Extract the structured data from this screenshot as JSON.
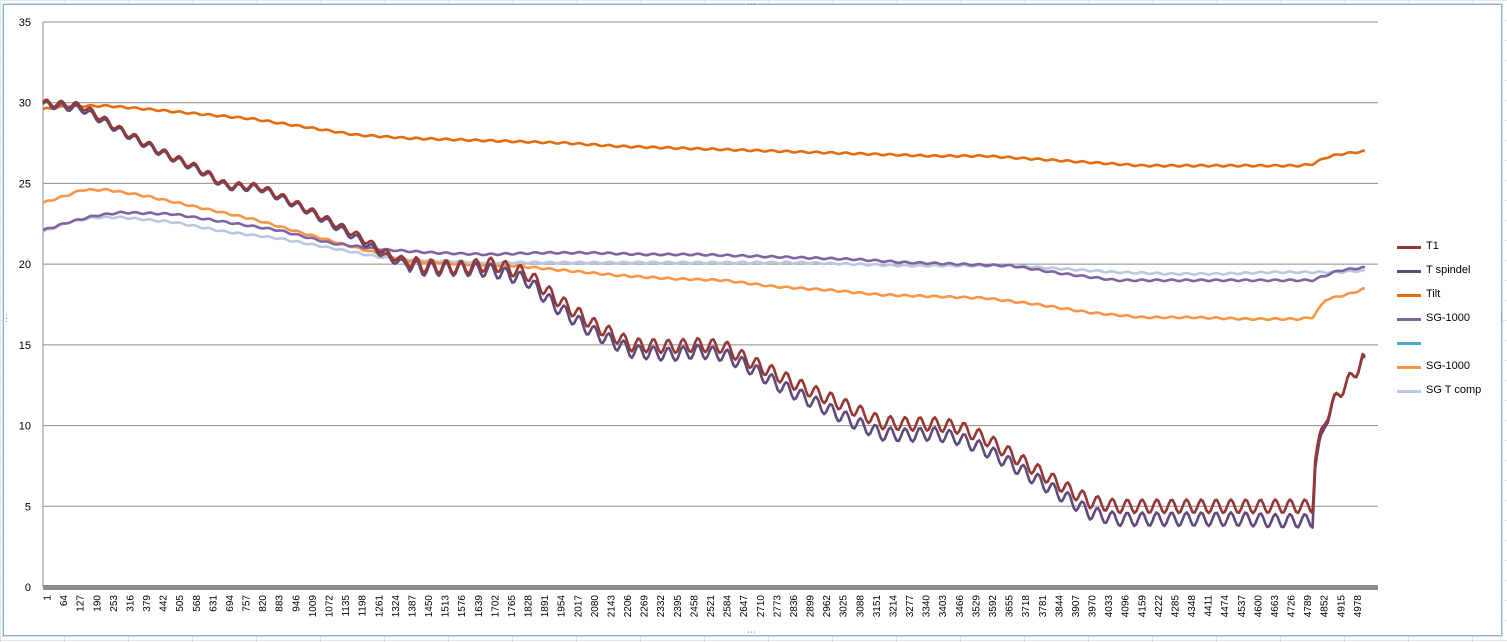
{
  "chart_data": {
    "type": "line",
    "ylim": [
      0,
      35
    ],
    "yticks": [
      0,
      5,
      10,
      15,
      20,
      25,
      30,
      35
    ],
    "xlim": [
      1,
      5100
    ],
    "xtick_labels": [
      "1",
      "64",
      "127",
      "190",
      "253",
      "316",
      "379",
      "442",
      "505",
      "568",
      "631",
      "694",
      "757",
      "820",
      "883",
      "946",
      "1009",
      "1072",
      "1135",
      "1198",
      "1261",
      "1324",
      "1387",
      "1450",
      "1513",
      "1576",
      "1639",
      "1702",
      "1765",
      "1828",
      "1891",
      "1954",
      "2017",
      "2080",
      "2143",
      "2206",
      "2269",
      "2332",
      "2395",
      "2458",
      "2521",
      "2584",
      "2647",
      "2710",
      "2773",
      "2836",
      "2899",
      "2962",
      "3025",
      "3088",
      "3151",
      "3214",
      "3277",
      "3340",
      "3403",
      "3466",
      "3529",
      "3592",
      "3655",
      "3718",
      "3781",
      "3844",
      "3907",
      "3970",
      "4033",
      "4096",
      "4159",
      "4222",
      "4285",
      "4348",
      "4411",
      "4474",
      "4537",
      "4600",
      "4663",
      "4726",
      "4789",
      "4852",
      "4915",
      "4978"
    ],
    "grid": "horizontal",
    "legend_position": "right",
    "series": [
      {
        "name": "T1",
        "color": "#953735",
        "x": [
          1,
          150,
          300,
          450,
          600,
          700,
          830,
          1000,
          1200,
          1330,
          1450,
          1600,
          1720,
          1850,
          1950,
          2100,
          2250,
          2400,
          2500,
          2600,
          2700,
          2800,
          2900,
          3000,
          3100,
          3200,
          3300,
          3400,
          3500,
          3600,
          3700,
          3800,
          3900,
          4000,
          4100,
          4200,
          4300,
          4400,
          4500,
          4600,
          4700,
          4850,
          4860,
          4900,
          4950,
          5000,
          5050
        ],
        "y": [
          30,
          29.8,
          28.3,
          27.0,
          25.9,
          24.9,
          24.8,
          23.5,
          21.8,
          20.5,
          19.9,
          19.8,
          20.0,
          19.4,
          18.0,
          16.3,
          15.0,
          14.9,
          15.0,
          14.9,
          14.0,
          13.2,
          12.4,
          11.7,
          11.0,
          10.2,
          10.1,
          10.1,
          9.9,
          9.2,
          8.2,
          7.2,
          6.2,
          5.3,
          5.0,
          5.0,
          5.0,
          5.0,
          5.0,
          5.0,
          5.0,
          5.0,
          8.0,
          10.5,
          12.0,
          13.0,
          14.3
        ]
      },
      {
        "name": "T spindel",
        "color": "#604a7b",
        "x": [
          1,
          150,
          300,
          450,
          600,
          700,
          830,
          1000,
          1200,
          1330,
          1450,
          1600,
          1720,
          1850,
          1950,
          2100,
          2250,
          2400,
          2500,
          2600,
          2700,
          2800,
          2900,
          3000,
          3100,
          3200,
          3300,
          3400,
          3500,
          3600,
          3700,
          3800,
          3900,
          4000,
          4100,
          4200,
          4300,
          4400,
          4500,
          4600,
          4700,
          4850,
          4860,
          4900,
          4950,
          5000,
          5050
        ],
        "y": [
          29.9,
          29.6,
          28.2,
          26.9,
          25.8,
          24.8,
          24.7,
          23.4,
          21.6,
          20.3,
          19.7,
          19.7,
          19.6,
          19.0,
          17.5,
          15.8,
          14.6,
          14.4,
          14.6,
          14.4,
          13.6,
          12.6,
          11.8,
          11.0,
          10.2,
          9.5,
          9.4,
          9.5,
          9.2,
          8.5,
          7.6,
          6.6,
          5.6,
          4.6,
          4.2,
          4.2,
          4.2,
          4.2,
          4.2,
          4.2,
          4.1,
          4.1,
          7.5,
          10.3,
          12.0,
          13.0,
          14.2
        ]
      },
      {
        "name": "Tilt",
        "color": "#e46c0a",
        "x": [
          1,
          100,
          250,
          400,
          600,
          800,
          1000,
          1200,
          1400,
          1600,
          1800,
          2000,
          2200,
          2400,
          2600,
          2800,
          3000,
          3200,
          3400,
          3600,
          3800,
          4000,
          4200,
          4400,
          4600,
          4800,
          4850,
          4900,
          4950,
          5050
        ],
        "y": [
          29.6,
          29.8,
          29.8,
          29.6,
          29.3,
          29.0,
          28.5,
          28.0,
          27.8,
          27.7,
          27.6,
          27.5,
          27.3,
          27.2,
          27.1,
          27.0,
          26.9,
          26.8,
          26.7,
          26.7,
          26.5,
          26.3,
          26.1,
          26.1,
          26.1,
          26.1,
          26.2,
          26.6,
          26.8,
          27.0
        ]
      },
      {
        "name": "SG-1000",
        "color": "#8064a2",
        "x": [
          1,
          100,
          200,
          300,
          500,
          700,
          900,
          1100,
          1300,
          1500,
          1700,
          1900,
          2100,
          2300,
          2500,
          2700,
          2900,
          3100,
          3300,
          3500,
          3700,
          3900,
          4100,
          4300,
          4500,
          4700,
          4850,
          4950,
          5050
        ],
        "y": [
          22.1,
          22.6,
          23.0,
          23.2,
          23.1,
          22.6,
          22.1,
          21.3,
          20.9,
          20.7,
          20.6,
          20.7,
          20.7,
          20.6,
          20.6,
          20.5,
          20.4,
          20.3,
          20.1,
          20.0,
          19.9,
          19.4,
          19.0,
          19.0,
          19.0,
          19.0,
          19.0,
          19.6,
          19.8
        ]
      },
      {
        "name": "",
        "color": "#4bacc6",
        "x": [],
        "y": []
      },
      {
        "name": "SG-1000",
        "color": "#f79646",
        "x": [
          1,
          100,
          150,
          250,
          400,
          600,
          800,
          1000,
          1200,
          1400,
          1600,
          1800,
          2000,
          2200,
          2400,
          2600,
          2800,
          3000,
          3200,
          3400,
          3600,
          3800,
          4000,
          4200,
          4400,
          4600,
          4800,
          4850,
          4900,
          5000,
          5050
        ],
        "y": [
          23.8,
          24.3,
          24.6,
          24.6,
          24.2,
          23.5,
          22.8,
          21.9,
          21.0,
          20.2,
          20.0,
          19.9,
          19.6,
          19.3,
          19.1,
          19.0,
          18.6,
          18.4,
          18.1,
          18.0,
          17.9,
          17.5,
          17.0,
          16.7,
          16.7,
          16.6,
          16.6,
          16.7,
          17.8,
          18.2,
          18.5
        ]
      },
      {
        "name": "SG T comp",
        "color": "#b9c9e0",
        "x": [
          1,
          100,
          200,
          300,
          500,
          700,
          900,
          1100,
          1300,
          1500,
          1700,
          1900,
          2100,
          2300,
          2500,
          2700,
          2900,
          3100,
          3300,
          3500,
          3700,
          3900,
          4100,
          4300,
          4500,
          4700,
          4850,
          4950,
          5050
        ],
        "y": [
          22.0,
          22.6,
          22.9,
          22.9,
          22.6,
          22.0,
          21.6,
          21.0,
          20.4,
          20.2,
          20.1,
          20.1,
          20.1,
          20.1,
          20.1,
          20.1,
          20.1,
          20.0,
          19.9,
          19.9,
          19.9,
          19.7,
          19.5,
          19.4,
          19.4,
          19.5,
          19.5,
          19.5,
          19.6
        ]
      }
    ]
  }
}
